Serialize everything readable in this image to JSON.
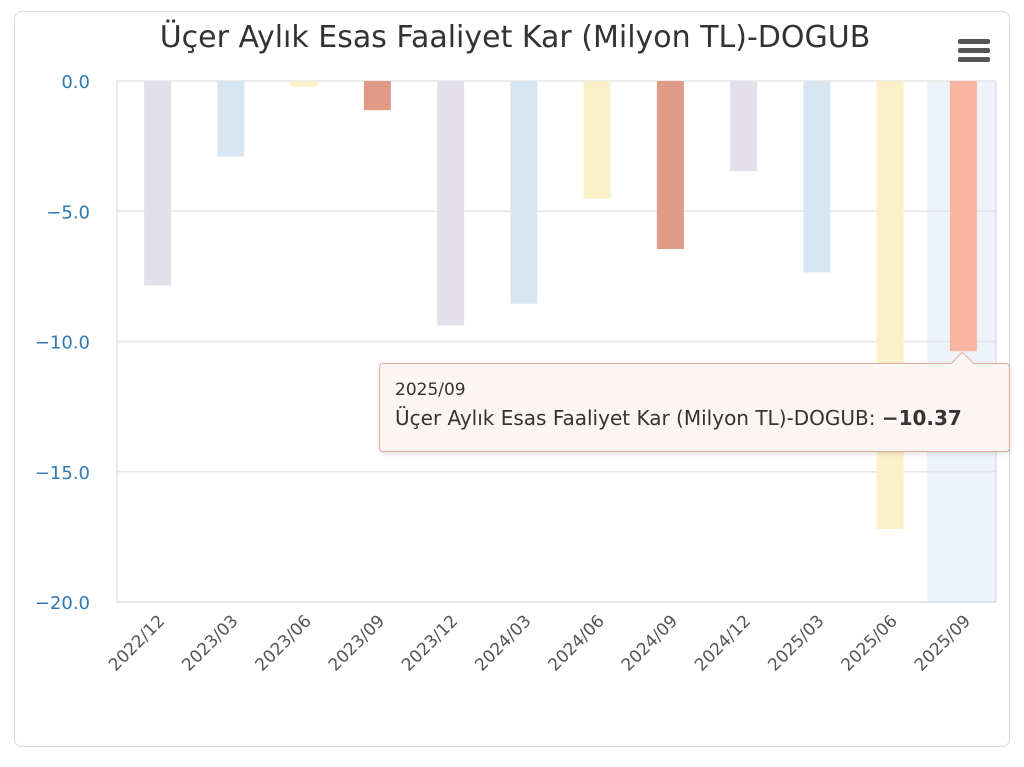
{
  "chart_data": {
    "type": "bar",
    "title": "Üçer Aylık Esas Faaliyet Kar (Milyon TL)-DOGUB",
    "categories": [
      "2022/12",
      "2023/03",
      "2023/06",
      "2023/09",
      "2023/12",
      "2024/03",
      "2024/06",
      "2024/09",
      "2024/12",
      "2025/03",
      "2025/06",
      "2025/09"
    ],
    "values": [
      -7.85,
      -2.9,
      -0.22,
      -1.12,
      -9.38,
      -8.55,
      -4.52,
      -6.45,
      -3.46,
      -7.35,
      -17.2,
      -10.37
    ],
    "colors": [
      "#e3e0ec",
      "#d6e6f3",
      "#faf1c9",
      "#e09b86",
      "#e3e0ec",
      "#d6e6f3",
      "#faf1c9",
      "#e09b86",
      "#e3e0ec",
      "#d6e6f3",
      "#faf1c9",
      "#f9b4a0"
    ],
    "y_ticks": [
      "0.0",
      "−5.0",
      "−10.0",
      "−15.0",
      "−20.0"
    ],
    "ylim": [
      -20,
      0
    ],
    "grid": true,
    "highlighted_index": 11,
    "highlight_color": "#eef2f9",
    "axis_label_color": "#2f79b5",
    "tick_label_color": "#555555"
  },
  "menu": {
    "icon": "hamburger-menu-icon"
  },
  "tooltip": {
    "date": "2025/09",
    "series_label": "Üçer Aylık Esas Faaliyet Kar (Milyon TL)-DOGUB: ",
    "value": "−10.37"
  }
}
